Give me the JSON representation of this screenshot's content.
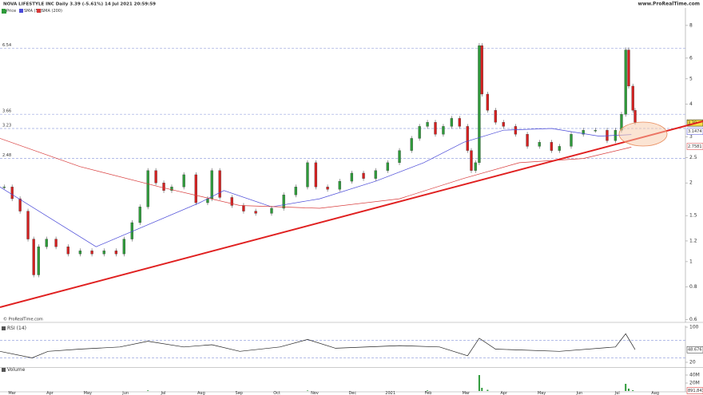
{
  "header": {
    "title": "NOVA LIFESTYLE INC Daily 3.39 (-5.61%) 14 Jul 2021 20:59:59",
    "watermark": "www.ProRealTime.com",
    "copyright": "© ProRealTime.com"
  },
  "chart_data": [
    {
      "type": "candlestick",
      "log_scale": true,
      "xlim": [
        -0.32,
        17.8
      ],
      "ylim": [
        0.59,
        9.2
      ],
      "yticks": [
        8,
        6,
        5,
        4,
        3,
        2.5,
        2,
        1.5,
        1.2,
        1,
        0.8,
        0.6
      ],
      "levels": [
        6.54,
        3.66,
        3.23,
        2.48
      ],
      "series": [
        {
          "name": "Price",
          "color": "#2e9a3a",
          "down_color": "#d42020",
          "last": 3.39,
          "x": [
            -0.21,
            0,
            0.21,
            0.42,
            0.57,
            0.7,
            0.91,
            1.16,
            1.48,
            1.8,
            2.11,
            2.43,
            2.75,
            2.96,
            3.17,
            3.38,
            3.59,
            3.8,
            4.01,
            4.22,
            4.54,
            4.86,
            5.17,
            5.28,
            5.49,
            5.81,
            6.12,
            6.44,
            6.86,
            7.18,
            7.5,
            7.81,
            8.03,
            8.34,
            8.66,
            8.98,
            9.29,
            9.61,
            9.93,
            10.24,
            10.56,
            10.77,
            10.98,
            11.19,
            11.4,
            11.62,
            11.83,
            12.04,
            12.14,
            12.25,
            12.35,
            12.42,
            12.57,
            12.78,
            12.99,
            13.31,
            13.62,
            13.94,
            14.26,
            14.47,
            14.78,
            15.1,
            15.42,
            15.73,
            15.95,
            16.11,
            16.22,
            16.3,
            16.41,
            16.47
          ],
          "values": [
            1.93,
            1.74,
            1.56,
            1.22,
            0.89,
            1.14,
            1.22,
            1.14,
            1.07,
            1.1,
            1.07,
            1.1,
            1.07,
            1.22,
            1.41,
            1.62,
            2.23,
            2,
            1.87,
            1.93,
            2.15,
            1.68,
            1.74,
            2.23,
            1.76,
            1.64,
            1.56,
            1.53,
            1.6,
            1.8,
            1.93,
            2.39,
            1.93,
            1.89,
            2.03,
            2.18,
            2.08,
            2.23,
            2.39,
            2.66,
            2.96,
            3.29,
            3.41,
            3.07,
            3.29,
            3.53,
            3.29,
            2.66,
            2.23,
            2.39,
            6.7,
            4.37,
            3.79,
            3.41,
            3.29,
            3.07,
            2.76,
            2.86,
            2.66,
            2.76,
            3.07,
            3.18,
            3.18,
            2.9,
            3.18,
            3.66,
            6.45,
            4.69,
            3.79,
            3.41
          ]
        },
        {
          "name": "SMA (50)",
          "color": "#4a4ad8",
          "last": 3.1474,
          "x": [
            -0.32,
            2.22,
            4.96,
            5.6,
            6.86,
            8.13,
            9.61,
            10.88,
            11.94,
            12.99,
            14.26,
            15.52,
            16.37
          ],
          "values": [
            1.93,
            1.14,
            1.68,
            1.87,
            1.62,
            1.74,
            2.03,
            2.39,
            2.86,
            3.18,
            3.23,
            3.02,
            3.06
          ]
        },
        {
          "name": "SMA (200)",
          "color": "#d83a3a",
          "last": 2.7581,
          "x": [
            -0.32,
            1.79,
            3.91,
            6.02,
            8.13,
            10.24,
            11.94,
            13.41,
            15.1,
            16.37
          ],
          "values": [
            2.96,
            2.31,
            1.93,
            1.64,
            1.6,
            1.74,
            2.08,
            2.39,
            2.48,
            2.74
          ]
        }
      ]
    },
    {
      "type": "line",
      "title": "RSI (14)",
      "xlim": [
        -0.32,
        17.8
      ],
      "ylim": [
        10,
        100
      ],
      "yticks": [
        100,
        20
      ],
      "levels": [
        70,
        30
      ],
      "series": [
        {
          "name": "RSI",
          "color": "#222",
          "last": 48.676,
          "x": [
            -0.32,
            0.53,
            0.95,
            1.79,
            2.85,
            3.59,
            4.54,
            5.28,
            6.02,
            7.08,
            7.81,
            8.55,
            10.24,
            11.3,
            12.04,
            12.35,
            12.78,
            14.47,
            15.95,
            16.22,
            16.47
          ],
          "values": [
            45,
            30,
            45,
            50,
            55,
            68,
            55,
            60,
            45,
            55,
            72,
            52,
            58,
            55,
            35,
            75,
            50,
            45,
            55,
            85,
            49
          ]
        }
      ]
    },
    {
      "type": "bar",
      "title": "Volume",
      "xlim": [
        -0.32,
        17.8
      ],
      "ylim": [
        0,
        56000000
      ],
      "yticks": [
        {
          "value": 40000000,
          "label": "40M"
        },
        {
          "value": 20000000,
          "label": "20M"
        }
      ],
      "xticks": [
        {
          "value": 0,
          "label": "Mar"
        },
        {
          "value": 1,
          "label": "Apr"
        },
        {
          "value": 2,
          "label": "May"
        },
        {
          "value": 3,
          "label": "Jun"
        },
        {
          "value": 4,
          "label": "Jul"
        },
        {
          "value": 5,
          "label": "Aug"
        },
        {
          "value": 6,
          "label": "Sep"
        },
        {
          "value": 7,
          "label": "Oct"
        },
        {
          "value": 8,
          "label": "Nov"
        },
        {
          "value": 9,
          "label": "Dec"
        },
        {
          "value": 10,
          "label": "2021"
        },
        {
          "value": 11,
          "label": "Feb"
        },
        {
          "value": 12,
          "label": "Mar"
        },
        {
          "value": 13,
          "label": "Apr"
        },
        {
          "value": 14,
          "label": "May"
        },
        {
          "value": 15,
          "label": "Jun"
        },
        {
          "value": 16,
          "label": "Jul"
        },
        {
          "value": 17,
          "label": "Aug"
        }
      ],
      "series": [
        {
          "name": "Volume",
          "color": "#2e9a3a",
          "last": {
            "value": 891843,
            "label": "891,843"
          },
          "x": [
            3.59,
            7.81,
            10.98,
            12.35,
            12.42,
            12.57,
            16.22,
            16.3,
            16.41
          ],
          "values": [
            1500000,
            1200000,
            1500000,
            40000000,
            8000000,
            3000000,
            18000000,
            6000000,
            2000000
          ]
        }
      ]
    }
  ]
}
